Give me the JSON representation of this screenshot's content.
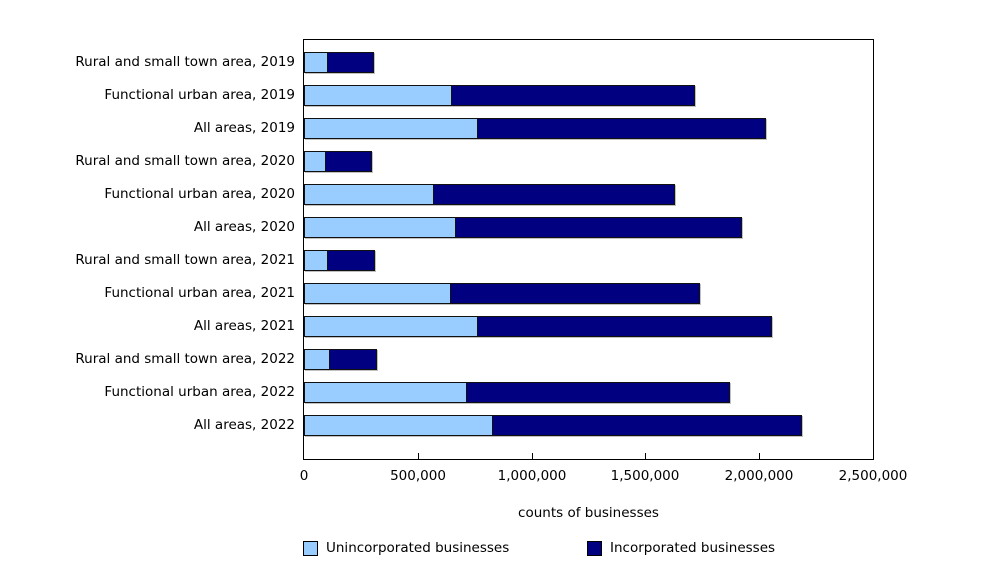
{
  "chart_data": {
    "type": "bar",
    "orientation": "horizontal",
    "stacked": true,
    "categories": [
      "Rural and small town area, 2019",
      "Functional urban area, 2019",
      "All areas, 2019",
      "Rural and small town area, 2020",
      "Functional urban area, 2020",
      "All areas, 2020",
      "Rural and small town area, 2021",
      "Functional urban area, 2021",
      "All areas, 2021",
      "Rural and small town area, 2022",
      "Functional urban area, 2022",
      "All areas, 2022"
    ],
    "series": [
      {
        "name": "Unincorporated businesses",
        "color": "#99CCFF",
        "values": [
          105000,
          650000,
          765000,
          95000,
          570000,
          670000,
          105000,
          645000,
          765000,
          115000,
          715000,
          830000
        ]
      },
      {
        "name": "Incorporated businesses",
        "color": "#000080",
        "values": [
          205000,
          1070000,
          1270000,
          205000,
          1065000,
          1260000,
          210000,
          1100000,
          1295000,
          210000,
          1160000,
          1360000
        ]
      }
    ],
    "xlabel": "counts of businesses",
    "xlim": [
      0,
      2500000
    ],
    "xticks": [
      0,
      500000,
      1000000,
      1500000,
      2000000,
      2500000
    ],
    "xtick_labels": [
      "0",
      "500,000",
      "1,000,000",
      "1,500,000",
      "2,000,000",
      "2,500,000"
    ],
    "grid": false,
    "legend_position": "bottom",
    "bar_border_color": "#111111",
    "axis_color": "#000000",
    "text_color": "#000000",
    "background_color": "#ffffff"
  }
}
